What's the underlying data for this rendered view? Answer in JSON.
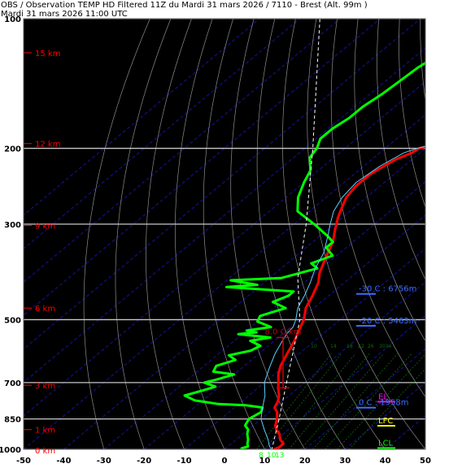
{
  "header": {
    "title": "OBS / Observation TEMP HD Filtered 11Z du Mardi 31 mars 2026 / 7110 - Brest (Alt. 99m )",
    "subtitle": "Mardi 31 mars 2026 11:00 UTC"
  },
  "colors": {
    "background": "#000000",
    "temperature": "#ff0000",
    "dewpoint": "#00ff00",
    "isobar": "#c8c8c8",
    "dry_adiabat": "#8c8c8c",
    "isotherm": "#1414a0",
    "mixing_ratio": "#0a6e0a",
    "height_label": "#ff0000",
    "level_label": "#3c6eff",
    "lapse_rate": "#c80000",
    "el": "#ff00ff",
    "lfc": "#ffff00",
    "lcl": "#00ff00",
    "axis_text": "#ffffff",
    "wind": "#ffffff"
  },
  "chart_data": {
    "type": "line",
    "x_axis": {
      "ticks": [
        -50,
        -40,
        -30,
        -20,
        -10,
        0,
        10,
        20,
        30,
        40,
        50
      ],
      "range": [
        -50,
        50
      ]
    },
    "y_axis": {
      "scale": "log",
      "range": [
        1000,
        100
      ],
      "ticks": [
        100,
        200,
        300,
        500,
        700,
        850,
        1000
      ]
    },
    "height_labels": [
      {
        "text": "15 km",
        "p": 120
      },
      {
        "text": "12 km",
        "p": 195
      },
      {
        "text": "9 km",
        "p": 302
      },
      {
        "text": "6 km",
        "p": 470
      },
      {
        "text": "3 km",
        "p": 710
      },
      {
        "text": "1 km",
        "p": 900
      },
      {
        "text": "0 km",
        "p": 1005
      }
    ],
    "series": [
      {
        "color": "#ff0000",
        "points": [
          [
            1005,
            12
          ],
          [
            990,
            13
          ],
          [
            970,
            13
          ],
          [
            950,
            11
          ],
          [
            920,
            9
          ],
          [
            900,
            7
          ],
          [
            880,
            5.5
          ],
          [
            850,
            4
          ],
          [
            820,
            2
          ],
          [
            800,
            0
          ],
          [
            775,
            -1
          ],
          [
            750,
            -2.5
          ],
          [
            720,
            -5
          ],
          [
            700,
            -6.5
          ],
          [
            670,
            -9
          ],
          [
            640,
            -11
          ],
          [
            600,
            -13
          ],
          [
            560,
            -15
          ],
          [
            530,
            -17
          ],
          [
            500,
            -19
          ],
          [
            470,
            -22
          ],
          [
            440,
            -24
          ],
          [
            410,
            -26.5
          ],
          [
            390,
            -29
          ],
          [
            360,
            -32
          ],
          [
            330,
            -35
          ],
          [
            310,
            -38
          ],
          [
            290,
            -41
          ],
          [
            275,
            -43
          ],
          [
            260,
            -45
          ],
          [
            245,
            -46
          ],
          [
            230,
            -46
          ],
          [
            220,
            -45
          ],
          [
            212,
            -44
          ],
          [
            205,
            -42
          ],
          [
            200,
            -41.5
          ],
          [
            195,
            -38
          ],
          [
            190,
            -33
          ],
          [
            185,
            -31
          ],
          [
            175,
            -31.5
          ],
          [
            165,
            -31
          ],
          [
            150,
            -32
          ],
          [
            140,
            -31.5
          ],
          [
            130,
            -32
          ],
          [
            120,
            -32.5
          ],
          [
            110,
            -31.5
          ],
          [
            100,
            -31
          ]
        ]
      },
      {
        "color": "#00ff00",
        "points": [
          [
            1005,
            5
          ],
          [
            995,
            4
          ],
          [
            985,
            5
          ],
          [
            970,
            4
          ],
          [
            950,
            3
          ],
          [
            920,
            1
          ],
          [
            900,
            0
          ],
          [
            880,
            -2
          ],
          [
            850,
            -3
          ],
          [
            820,
            -2
          ],
          [
            800,
            -3
          ],
          [
            790,
            -8
          ],
          [
            785,
            -15
          ],
          [
            770,
            -22
          ],
          [
            750,
            -26
          ],
          [
            730,
            -23
          ],
          [
            715,
            -21
          ],
          [
            700,
            -25
          ],
          [
            690,
            -23
          ],
          [
            670,
            -20
          ],
          [
            660,
            -26
          ],
          [
            640,
            -27
          ],
          [
            620,
            -24
          ],
          [
            605,
            -27
          ],
          [
            590,
            -23
          ],
          [
            575,
            -22
          ],
          [
            560,
            -26
          ],
          [
            550,
            -22
          ],
          [
            540,
            -31
          ],
          [
            535,
            -27
          ],
          [
            530,
            -30
          ],
          [
            520,
            -25
          ],
          [
            505,
            -30
          ],
          [
            490,
            -31
          ],
          [
            470,
            -27
          ],
          [
            455,
            -32
          ],
          [
            440,
            -30
          ],
          [
            430,
            -30
          ],
          [
            420,
            -48
          ],
          [
            415,
            -41
          ],
          [
            405,
            -49
          ],
          [
            400,
            -37
          ],
          [
            380,
            -31
          ],
          [
            370,
            -34
          ],
          [
            355,
            -31
          ],
          [
            340,
            -35
          ],
          [
            330,
            -35
          ],
          [
            320,
            -38
          ],
          [
            300,
            -45
          ],
          [
            280,
            -53
          ],
          [
            260,
            -57
          ],
          [
            240,
            -60
          ],
          [
            225,
            -62
          ],
          [
            210,
            -66
          ],
          [
            200,
            -67
          ],
          [
            190,
            -69
          ],
          [
            180,
            -69
          ],
          [
            170,
            -68
          ],
          [
            160,
            -68
          ],
          [
            150,
            -67
          ],
          [
            140,
            -66.5
          ],
          [
            130,
            -66
          ],
          [
            120,
            -64.5
          ],
          [
            110,
            -63
          ],
          [
            100,
            -62
          ]
        ]
      },
      {
        "color": "#5ad0ff",
        "points": [
          [
            1005,
            12
          ],
          [
            980,
            10
          ],
          [
            950,
            8
          ],
          [
            900,
            4
          ],
          [
            850,
            0
          ],
          [
            800,
            -3
          ],
          [
            750,
            -6
          ],
          [
            700,
            -10
          ],
          [
            650,
            -13
          ],
          [
            600,
            -16
          ],
          [
            560,
            -18
          ],
          [
            540,
            -19
          ],
          [
            520,
            -19.5
          ],
          [
            500,
            -21
          ],
          [
            470,
            -24
          ],
          [
            440,
            -26
          ],
          [
            410,
            -28.5
          ],
          [
            380,
            -31.5
          ],
          [
            350,
            -34
          ],
          [
            320,
            -38
          ],
          [
            300,
            -41
          ],
          [
            280,
            -44
          ],
          [
            260,
            -46
          ],
          [
            240,
            -47
          ],
          [
            220,
            -46
          ],
          [
            205,
            -44
          ],
          [
            200,
            -42
          ],
          [
            190,
            -35
          ],
          [
            180,
            -33
          ],
          [
            160,
            -33.5
          ],
          [
            140,
            -33
          ],
          [
            120,
            -34
          ],
          [
            100,
            -33
          ]
        ]
      },
      {
        "color": "#ffffff",
        "style": "dashed",
        "points": [
          [
            1005,
            12
          ],
          [
            850,
            4.5
          ],
          [
            700,
            -4.5
          ],
          [
            500,
            -20
          ],
          [
            400,
            -33
          ],
          [
            300,
            -47
          ],
          [
            200,
            -68
          ],
          [
            100,
            -105
          ]
        ]
      }
    ],
    "level_labels": [
      {
        "text": "-30 C : 6756m",
        "p": 430
      },
      {
        "text": "-20 C : 5463m",
        "p": 510
      },
      {
        "text": "0 C : 1958m",
        "p": 790
      }
    ],
    "lapse_rate": {
      "text": "8.0 C/km",
      "p_top": 550,
      "p_bottom": 720
    },
    "markers": [
      {
        "text": "EL",
        "p": 765,
        "color": "#ff00ff"
      },
      {
        "text": "LFC",
        "p": 870,
        "color": "#ffff00"
      },
      {
        "text": "LCL",
        "p": 980,
        "color": "#00ff00"
      }
    ],
    "mixing_ratio_labels": [
      "8",
      "10",
      "13",
      "10",
      "14",
      "18",
      "22",
      "26",
      "3034"
    ],
    "wind_levels": [
      100,
      130,
      160,
      200,
      240,
      280,
      320,
      360,
      400,
      440,
      480,
      520,
      560,
      600,
      640,
      680,
      720,
      760,
      800,
      840,
      880,
      920,
      960,
      1000
    ]
  }
}
